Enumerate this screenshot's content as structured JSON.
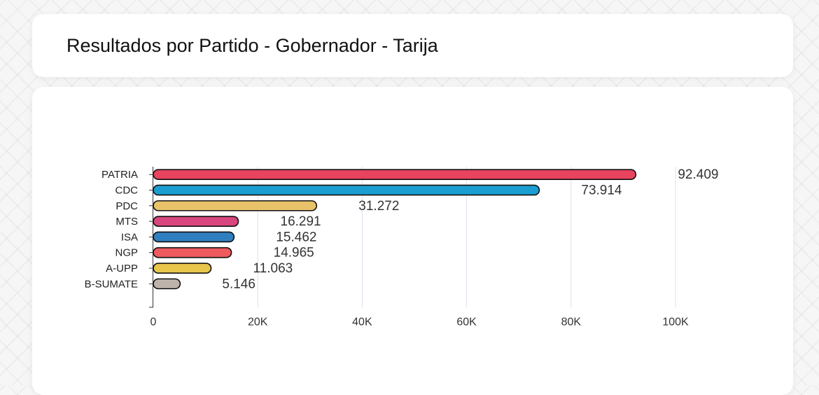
{
  "header": {
    "title": "Resultados por Partido - Gobernador - Tarija"
  },
  "chart_data": {
    "type": "bar",
    "orientation": "horizontal",
    "categories": [
      "PATRIA",
      "CDC",
      "PDC",
      "MTS",
      "ISA",
      "NGP",
      "A-UPP",
      "B-SUMATE"
    ],
    "values": [
      92409,
      73914,
      31272,
      16291,
      15462,
      14965,
      11063,
      5146
    ],
    "value_labels": [
      "92.409",
      "73.914",
      "31.272",
      "16.291",
      "15.462",
      "14.965",
      "11.063",
      "5.146"
    ],
    "colors": [
      "#e8435f",
      "#1a9ed1",
      "#e8c36a",
      "#d9457e",
      "#2f7fc0",
      "#ef5a5e",
      "#e8c64c",
      "#bdb3ab"
    ],
    "xticks": [
      0,
      20000,
      40000,
      60000,
      80000,
      100000
    ],
    "xtick_labels": [
      "0",
      "20K",
      "40K",
      "60K",
      "80K",
      "100K"
    ],
    "xlim": [
      0,
      100000
    ],
    "grid": true,
    "xlabel": "",
    "ylabel": ""
  }
}
